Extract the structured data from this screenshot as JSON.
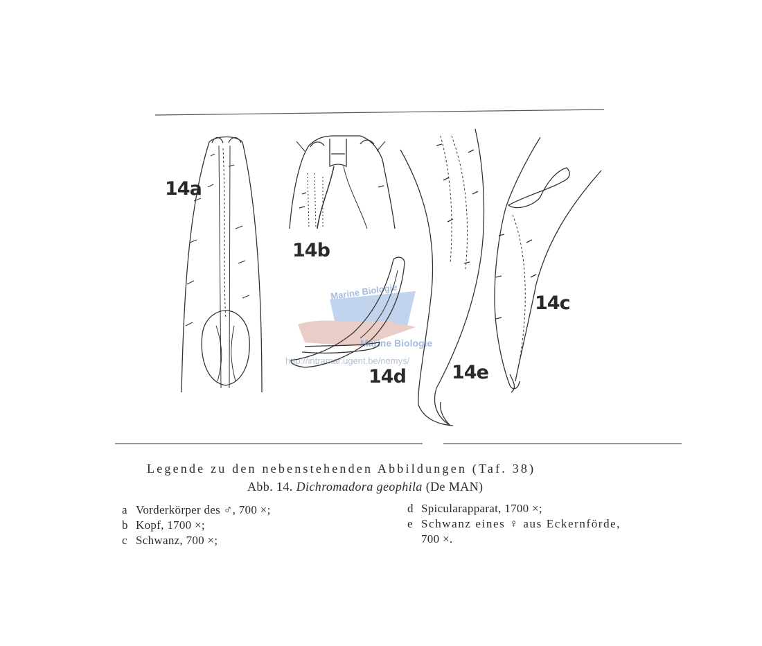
{
  "figures": [
    {
      "label": "14a",
      "icon": "nematode-anterior-body-drawing"
    },
    {
      "label": "14b",
      "icon": "nematode-head-drawing"
    },
    {
      "label": "14c",
      "icon": "nematode-tail-male-drawing"
    },
    {
      "label": "14d",
      "icon": "spicular-apparatus-drawing"
    },
    {
      "label": "14e",
      "icon": "nematode-tail-female-drawing"
    }
  ],
  "watermark": {
    "top_text": "Marine Biologie",
    "bottom_text": "Marine Biologie",
    "url": "http://intramar.ugent.be/nemys/",
    "color": "#5b86c8"
  },
  "caption": {
    "title": "Legende zu den nebenstehenden Abbildungen (Taf. 38)",
    "figure_prefix": "Abb. 14.",
    "species": "Dichromadora geophila",
    "authority": "(De MAN)"
  },
  "legend": {
    "left": [
      {
        "key": "a",
        "text": "Vorderkörper des ♂, 700 ×;"
      },
      {
        "key": "b",
        "text": "Kopf, 1700 ×;"
      },
      {
        "key": "c",
        "text": "Schwanz, 700 ×;"
      }
    ],
    "right": [
      {
        "key": "d",
        "text": "Spicularapparat, 1700 ×;"
      },
      {
        "key": "e",
        "text": "Schwanz eines ♀ aus Eckernförde,"
      },
      {
        "key": "",
        "text": "700 ×."
      }
    ]
  }
}
